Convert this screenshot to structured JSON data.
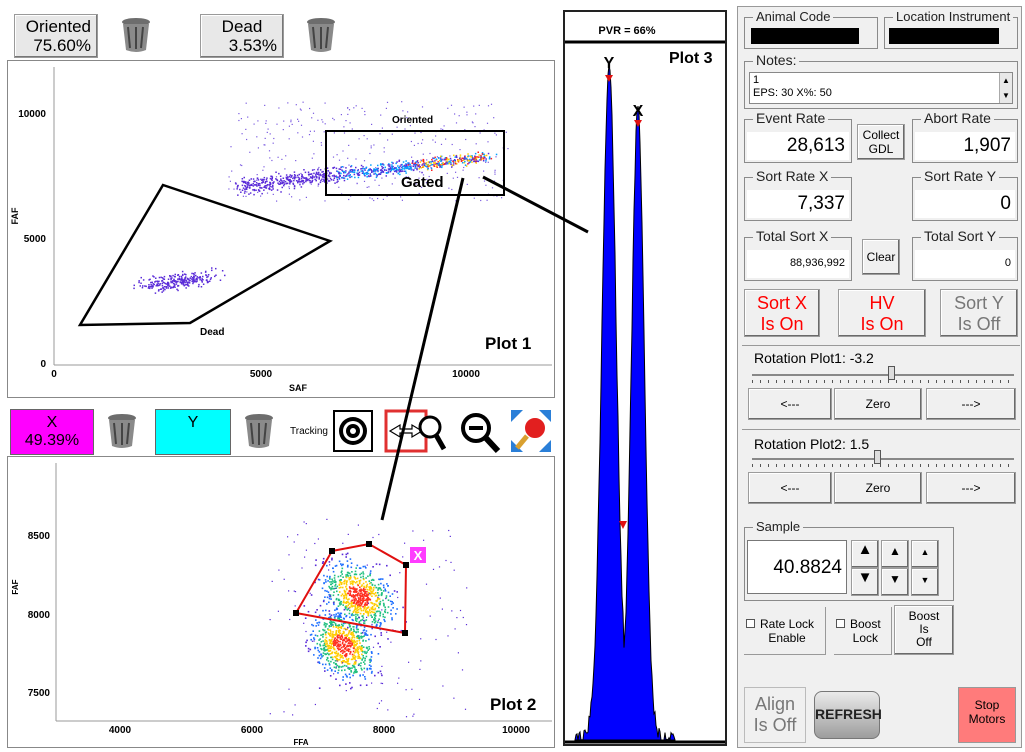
{
  "top_left": {
    "oriented_label": "Oriented",
    "oriented_value": "75.60%",
    "dead_label": "Dead",
    "dead_value": "3.53%"
  },
  "plot1": {
    "title": "Plot 1",
    "xlabel": "SAF",
    "ylabel": "FAF",
    "xticks": [
      "0",
      "5000",
      "10000"
    ],
    "yticks": [
      "10000",
      "5000",
      "0"
    ],
    "gate_oriented": "Oriented",
    "gate_dead": "Dead",
    "gated_label": "Gated"
  },
  "mid_toolbar": {
    "x_label": "X",
    "x_value": "49.39%",
    "y_label": "Y",
    "tracking_label": "Tracking",
    "x_color": "#ff00ff",
    "y_color": "#00ffff"
  },
  "plot2": {
    "title": "Plot 2",
    "xlabel": "FFA",
    "ylabel": "FAF",
    "xticks": [
      "4000",
      "6000",
      "8000",
      "10000"
    ],
    "yticks": [
      "8500",
      "8000",
      "7500"
    ],
    "gate_marker": "X"
  },
  "plot3": {
    "title": "Plot 3",
    "pvr": "PVR = 66%",
    "peak_y": "Y",
    "peak_x": "X"
  },
  "right_panel": {
    "animal_code_label": "Animal Code",
    "location_label": "Location Instrument",
    "notes_label": "Notes:",
    "notes_line1": "1",
    "notes_line2": "EPS: 30 X%: 50",
    "event_rate_label": "Event Rate",
    "event_rate": "28,613",
    "collect_label": "Collect\nGDL",
    "abort_rate_label": "Abort Rate",
    "abort_rate": "1,907",
    "sort_rate_x_label": "Sort Rate X",
    "sort_rate_x": "7,337",
    "sort_rate_y_label": "Sort Rate Y",
    "sort_rate_y": "0",
    "total_sort_x_label": "Total Sort X",
    "total_sort_x": "88,936,992",
    "clear_label": "Clear",
    "total_sort_y_label": "Total Sort Y",
    "total_sort_y": "0",
    "sort_x_status_l1": "Sort X",
    "sort_x_status_l2": "Is On",
    "hv_status_l1": "HV",
    "hv_status_l2": "Is On",
    "sort_y_status_l1": "Sort Y",
    "sort_y_status_l2": "Is Off",
    "rotation1_label": "Rotation Plot1: -3.2",
    "rotation1_value": -3.2,
    "rotation2_label": "Rotation Plot2: 1.5",
    "rotation2_value": 1.5,
    "left_btn": "<---",
    "zero_btn": "Zero",
    "right_btn": "--->",
    "sample_label": "Sample",
    "sample_value": "40.8824",
    "rate_lock_label": "Rate Lock\nEnable",
    "boost_lock_label": "Boost\nLock",
    "boost_status": "Boost\nIs\nOff",
    "align_l1": "Align",
    "align_l2": "Is Off",
    "refresh_label": "REFRESH",
    "stop_motors_label": "Stop\nMotors",
    "on_color": "#ff0000",
    "stop_color": "#ff7b7b"
  }
}
